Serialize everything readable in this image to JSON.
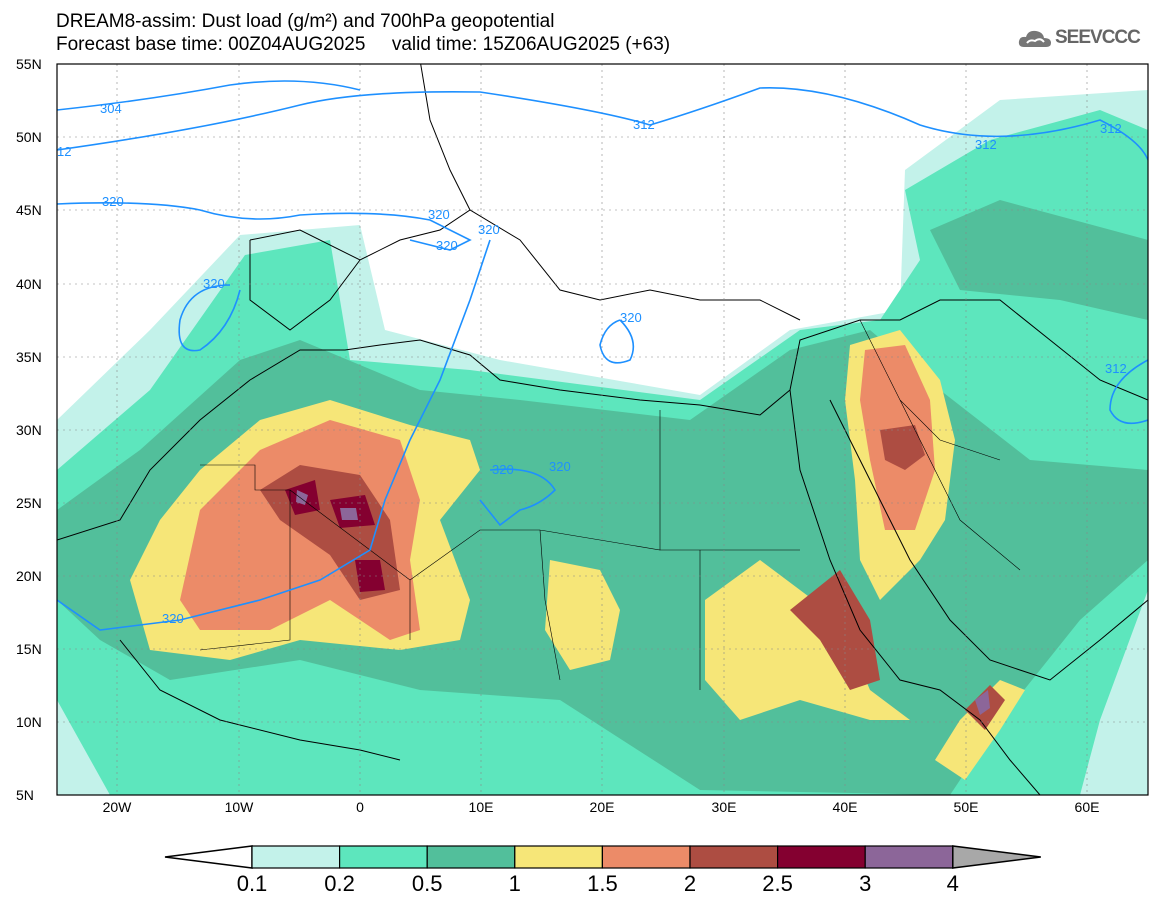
{
  "title": {
    "line1": "DREAM8-assim: Dust load (g/m²) and 700hPa geopotential",
    "line2": "Forecast base time: 00Z04AUG2025     valid time: 15Z06AUG2025 (+63)"
  },
  "logo": {
    "text": "SEEVCCC"
  },
  "map": {
    "lat_labels": [
      "55N",
      "50N",
      "45N",
      "40N",
      "35N",
      "30N",
      "25N",
      "20N",
      "15N",
      "10N",
      "5N"
    ],
    "lon_labels": [
      "20W",
      "10W",
      "0",
      "10E",
      "20E",
      "30E",
      "40E",
      "50E",
      "60E"
    ],
    "contour_labels": [
      "304",
      "312",
      "12",
      "312",
      "312",
      "312",
      "320",
      "320",
      "320",
      "320",
      "320",
      "320",
      "320",
      "320",
      "320",
      "320"
    ]
  },
  "colorbar": {
    "labels": [
      "0.1",
      "0.2",
      "0.5",
      "1",
      "1.5",
      "2",
      "2.5",
      "3",
      "4"
    ],
    "colors": [
      "#ffffff",
      "#c3f2ea",
      "#5de6bd",
      "#52bf9b",
      "#f6e678",
      "#ec8b68",
      "#ad4d42",
      "#840030",
      "#8c6699",
      "#a8a8a8"
    ]
  }
}
